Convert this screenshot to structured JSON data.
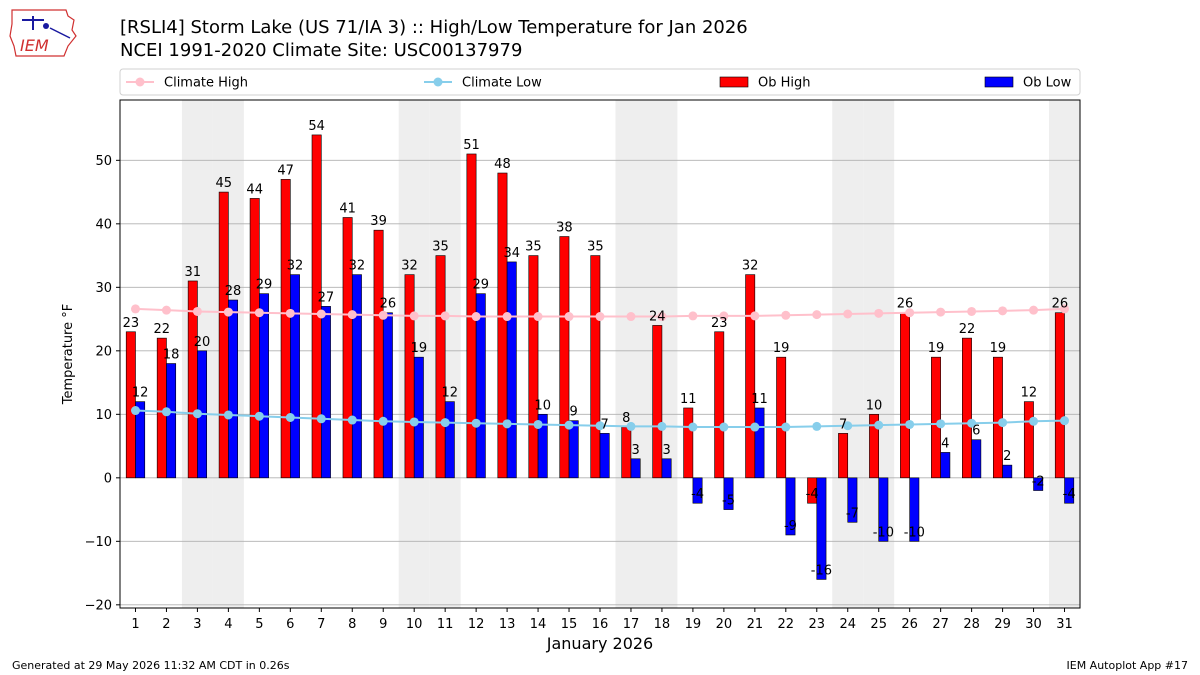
{
  "header": {
    "logo_text": "IEM",
    "title_line1": "[RSLI4] Storm Lake (US 71/IA 3) :: High/Low Temperature for Jan 2026",
    "title_line2": "NCEI 1991-2020 Climate Site: USC00137979"
  },
  "footer": {
    "generated": "Generated at 29 May 2026 11:32 AM CDT in 0.26s",
    "app": "IEM Autoplot App #17"
  },
  "colors": {
    "ob_high": "#ff0000",
    "ob_low": "#0000ff",
    "climate_high": "#ffc0cb",
    "climate_low": "#87ceeb",
    "weekend_band": "#eeeeee",
    "grid": "#b0b0b0"
  },
  "chart_data": {
    "type": "bar",
    "xlabel": "January 2026",
    "ylabel": "Temperature °F",
    "ylim": [
      -20.5,
      59.5
    ],
    "yticks": [
      -20,
      -10,
      0,
      10,
      20,
      30,
      40,
      50
    ],
    "grid": "horizontal",
    "legend_placement": "top",
    "shaded_days": [
      3,
      4,
      10,
      11,
      17,
      18,
      24,
      25,
      31
    ],
    "categories": [
      "1",
      "2",
      "3",
      "4",
      "5",
      "6",
      "7",
      "8",
      "9",
      "10",
      "11",
      "12",
      "13",
      "14",
      "15",
      "16",
      "17",
      "18",
      "19",
      "20",
      "21",
      "22",
      "23",
      "24",
      "25",
      "26",
      "27",
      "28",
      "29",
      "30",
      "31"
    ],
    "series": [
      {
        "name": "Ob High",
        "kind": "bar",
        "color": "#ff0000",
        "values": [
          23,
          22,
          31,
          45,
          44,
          47,
          54,
          41,
          39,
          32,
          35,
          51,
          48,
          35,
          38,
          35,
          8,
          24,
          11,
          23,
          32,
          19,
          -4,
          7,
          10,
          26,
          19,
          22,
          19,
          12,
          26
        ]
      },
      {
        "name": "Ob Low",
        "kind": "bar",
        "color": "#0000ff",
        "values": [
          12,
          18,
          20,
          28,
          29,
          32,
          27,
          32,
          26,
          19,
          12,
          29,
          34,
          10,
          9,
          7,
          3,
          3,
          -4,
          -5,
          11,
          -9,
          -16,
          -7,
          -10,
          -10,
          4,
          6,
          2,
          -2,
          -4
        ]
      },
      {
        "name": "Climate High",
        "kind": "line",
        "color": "#ffc0cb",
        "values": [
          26.6,
          26.4,
          26.2,
          26.1,
          26.0,
          25.9,
          25.8,
          25.7,
          25.6,
          25.5,
          25.5,
          25.4,
          25.4,
          25.4,
          25.4,
          25.4,
          25.4,
          25.4,
          25.5,
          25.5,
          25.5,
          25.6,
          25.7,
          25.8,
          25.9,
          26.0,
          26.1,
          26.2,
          26.3,
          26.4,
          26.6
        ]
      },
      {
        "name": "Climate Low",
        "kind": "line",
        "color": "#87ceeb",
        "values": [
          10.6,
          10.4,
          10.1,
          9.9,
          9.7,
          9.5,
          9.3,
          9.1,
          8.9,
          8.8,
          8.7,
          8.6,
          8.5,
          8.4,
          8.3,
          8.2,
          8.1,
          8.1,
          8.0,
          8.0,
          8.0,
          8.0,
          8.1,
          8.2,
          8.3,
          8.4,
          8.5,
          8.6,
          8.7,
          8.9,
          9.0
        ]
      }
    ]
  }
}
